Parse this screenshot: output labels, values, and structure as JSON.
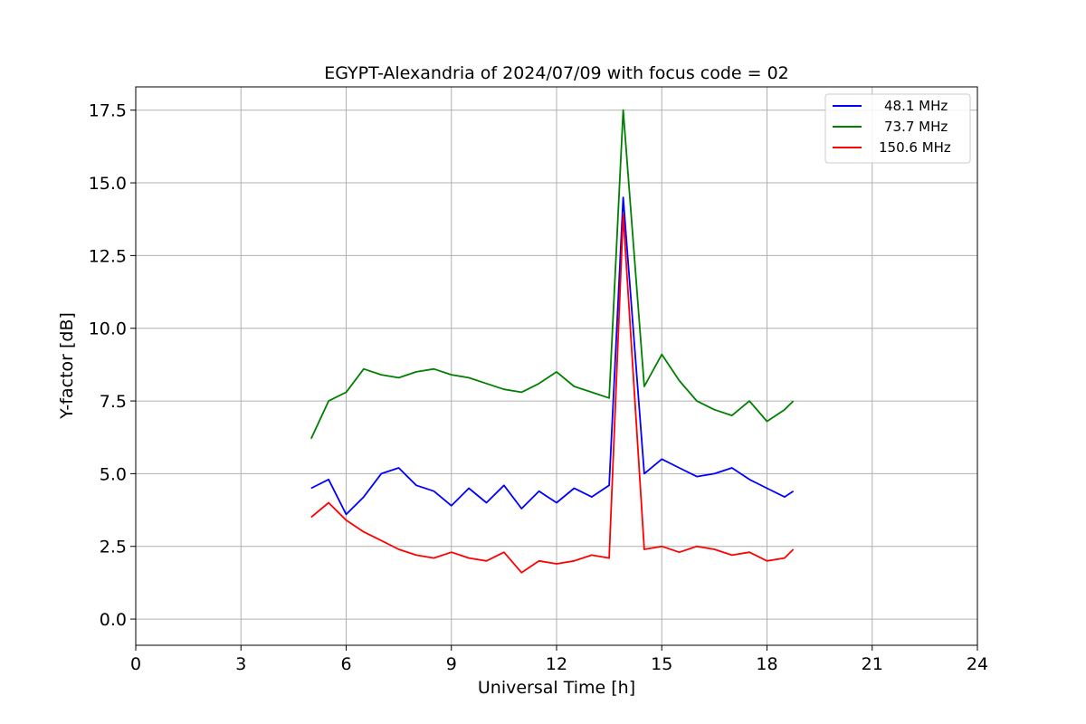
{
  "chart_data": {
    "type": "line",
    "title": "EGYPT-Alexandria of 2024/07/09 with focus code = 02",
    "xlabel": "Universal Time [h]",
    "ylabel": "Y-factor [dB]",
    "xlim": [
      0,
      24
    ],
    "ylim": [
      -0.9,
      18.3
    ],
    "xticks": [
      0,
      3,
      6,
      9,
      12,
      15,
      18,
      21,
      24
    ],
    "yticks": [
      0.0,
      2.5,
      5.0,
      7.5,
      10.0,
      12.5,
      15.0,
      17.5
    ],
    "xtick_labels": [
      "0",
      "3",
      "6",
      "9",
      "12",
      "15",
      "18",
      "21",
      "24"
    ],
    "ytick_labels": [
      "0.0",
      "2.5",
      "5.0",
      "7.5",
      "10.0",
      "12.5",
      "15.0",
      "17.5"
    ],
    "grid": true,
    "legend_position": "top-right",
    "series": [
      {
        "name": "48.1 MHz",
        "color": "#0000ff",
        "x": [
          5.0,
          5.5,
          6.0,
          6.5,
          7.0,
          7.5,
          8.0,
          8.5,
          9.0,
          9.5,
          10.0,
          10.5,
          11.0,
          11.5,
          12.0,
          12.5,
          13.0,
          13.5,
          13.9,
          14.5,
          15.0,
          15.5,
          16.0,
          16.5,
          17.0,
          17.5,
          18.0,
          18.5,
          18.75
        ],
        "values": [
          4.5,
          4.8,
          3.6,
          4.2,
          5.0,
          5.2,
          4.6,
          4.4,
          3.9,
          4.5,
          4.0,
          4.6,
          3.8,
          4.4,
          4.0,
          4.5,
          4.2,
          4.6,
          14.5,
          5.0,
          5.5,
          5.2,
          4.9,
          5.0,
          5.2,
          4.8,
          4.5,
          4.2,
          4.4
        ]
      },
      {
        "name": "73.7 MHz",
        "color": "#008000",
        "x": [
          5.0,
          5.5,
          6.0,
          6.5,
          7.0,
          7.5,
          8.0,
          8.5,
          9.0,
          9.5,
          10.0,
          10.5,
          11.0,
          11.5,
          12.0,
          12.5,
          13.0,
          13.5,
          13.9,
          14.5,
          15.0,
          15.5,
          16.0,
          16.5,
          17.0,
          17.5,
          18.0,
          18.5,
          18.75
        ],
        "values": [
          6.2,
          7.5,
          7.8,
          8.6,
          8.4,
          8.3,
          8.5,
          8.6,
          8.4,
          8.3,
          8.1,
          7.9,
          7.8,
          8.1,
          8.5,
          8.0,
          7.8,
          7.6,
          17.5,
          8.0,
          9.1,
          8.2,
          7.5,
          7.2,
          7.0,
          7.5,
          6.8,
          7.2,
          7.5
        ]
      },
      {
        "name": "150.6 MHz",
        "color": "#ff0000",
        "x": [
          5.0,
          5.5,
          6.0,
          6.5,
          7.0,
          7.5,
          8.0,
          8.5,
          9.0,
          9.5,
          10.0,
          10.5,
          11.0,
          11.5,
          12.0,
          12.5,
          13.0,
          13.5,
          13.9,
          14.5,
          15.0,
          15.5,
          16.0,
          16.5,
          17.0,
          17.5,
          18.0,
          18.5,
          18.75
        ],
        "values": [
          3.5,
          4.0,
          3.4,
          3.0,
          2.7,
          2.4,
          2.2,
          2.1,
          2.3,
          2.1,
          2.0,
          2.3,
          1.6,
          2.0,
          1.9,
          2.0,
          2.2,
          2.1,
          13.9,
          2.4,
          2.5,
          2.3,
          2.5,
          2.4,
          2.2,
          2.3,
          2.0,
          2.1,
          2.4
        ]
      }
    ]
  }
}
